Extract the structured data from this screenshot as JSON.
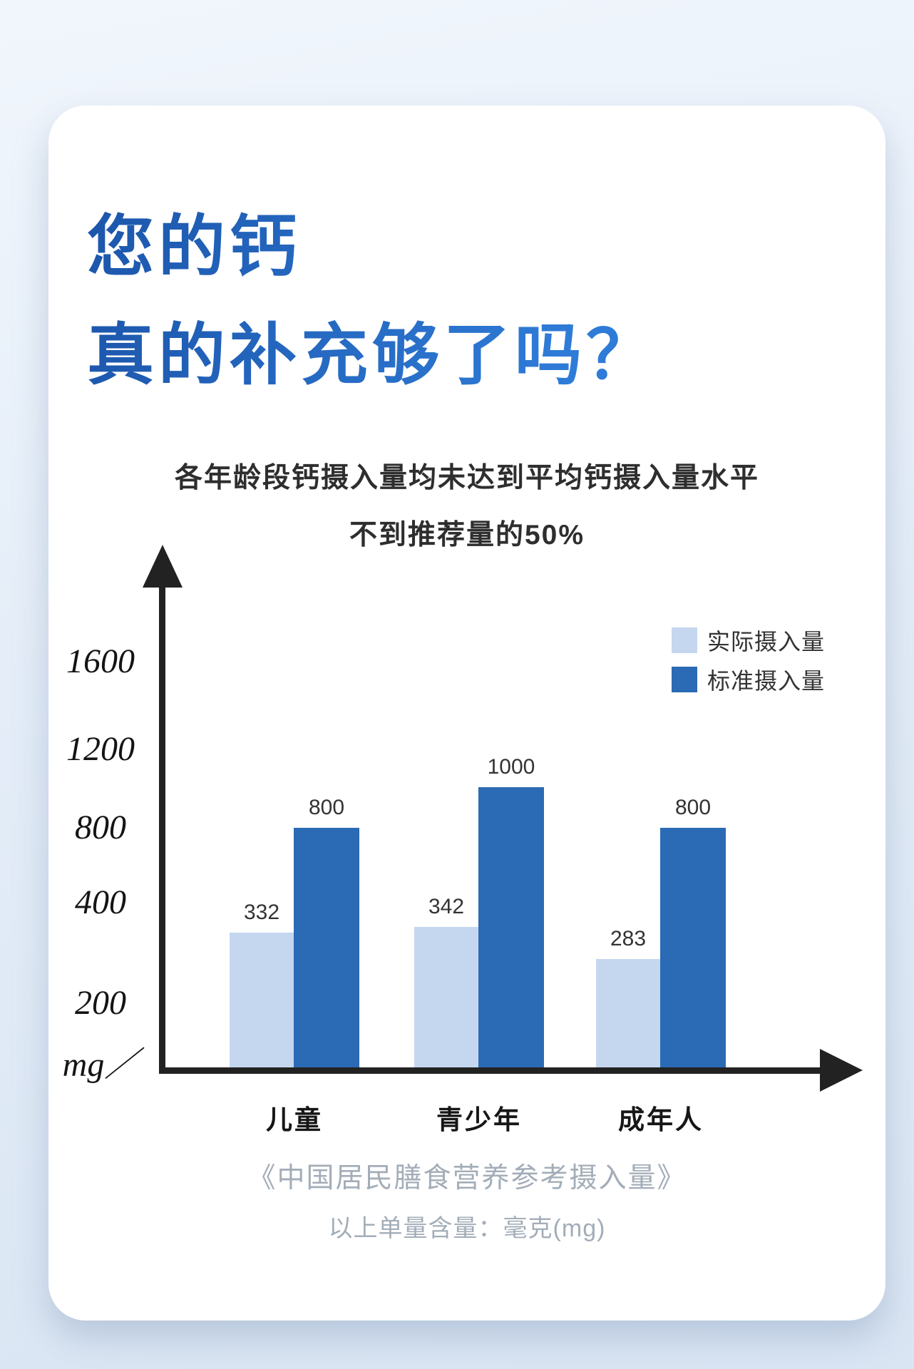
{
  "page": {
    "title_line1": "您的钙",
    "title_line2": "真的补充够了吗？",
    "subtitle_line1": "各年龄段钙摄入量均未达到平均钙摄入量水平",
    "subtitle_line2": "不到推荐量的50%",
    "source_line": "《中国居民膳食营养参考摄入量》",
    "unit_note": "以上单量含量：毫克(mg)"
  },
  "chart_data": {
    "type": "bar",
    "title": "各年龄段钙摄入量均未达到平均钙摄入量水平，不到推荐量的50%",
    "categories": [
      "儿童",
      "青少年",
      "成年人"
    ],
    "series": [
      {
        "name": "实际摄入量",
        "values": [
          332,
          342,
          283
        ],
        "color": "#c5d7ef"
      },
      {
        "name": "标准摄入量",
        "values": [
          800,
          1000,
          800
        ],
        "color": "#2b6ab4"
      }
    ],
    "y_ticks": [
      1600,
      1200,
      800,
      400,
      200
    ],
    "y_unit": "mg／",
    "ylabel": "mg",
    "xlabel": "",
    "ylim": [
      0,
      1800
    ],
    "legend_position": "top-right",
    "grid": false
  },
  "colors": {
    "title_gradient_start": "#1c56ab",
    "title_gradient_end": "#2f7cd8",
    "actual_bar": "#c5d7ef",
    "standard_bar": "#2b6ab4",
    "axis": "#222222",
    "footer_gray": "#a3adb8",
    "background": "#e4edf8"
  }
}
